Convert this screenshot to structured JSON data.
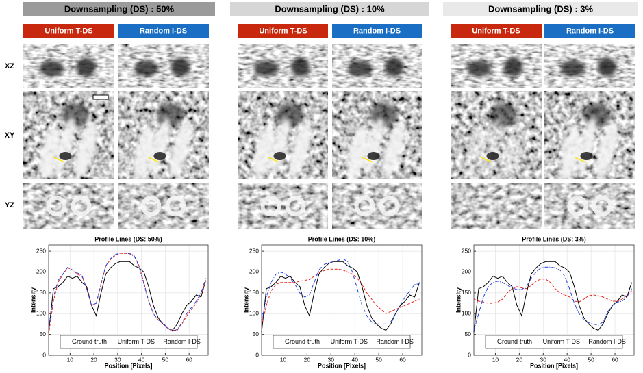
{
  "columns": [
    {
      "title": "Downsampling (DS) : 50%",
      "methods": [
        "Uniform T-DS",
        "Random I-DS"
      ]
    },
    {
      "title": "Downsampling (DS) : 10%",
      "methods": [
        "Uniform T-DS",
        "Random I-DS"
      ]
    },
    {
      "title": "Downsampling (DS) : 3%",
      "methods": [
        "Uniform T-DS",
        "Random I-DS"
      ]
    }
  ],
  "row_labels": [
    "XZ",
    "XY",
    "YZ"
  ],
  "chart_data": [
    {
      "type": "line",
      "title": "Profile Lines (DS: 50%)",
      "x_label": "Position [Pixels]",
      "y_label": "Intensity",
      "x": [
        1,
        3,
        5,
        7,
        9,
        11,
        13,
        15,
        17,
        19,
        21,
        23,
        25,
        27,
        29,
        31,
        33,
        35,
        37,
        39,
        41,
        43,
        45,
        47,
        49,
        51,
        53,
        55,
        57,
        59,
        61,
        63,
        65,
        67
      ],
      "series": [
        {
          "name": "Ground-truth",
          "color": "#000000",
          "line_style": "solid",
          "values": [
            55,
            160,
            165,
            175,
            190,
            185,
            190,
            175,
            165,
            120,
            95,
            150,
            195,
            210,
            220,
            225,
            225,
            225,
            215,
            210,
            200,
            165,
            120,
            90,
            75,
            65,
            60,
            75,
            100,
            120,
            130,
            145,
            140,
            180
          ]
        },
        {
          "name": "Uniform T-DS",
          "color": "#e8251f",
          "line_style": "dashed",
          "values": [
            50,
            130,
            175,
            195,
            210,
            205,
            195,
            190,
            160,
            120,
            125,
            170,
            215,
            230,
            240,
            245,
            245,
            245,
            240,
            215,
            175,
            130,
            100,
            85,
            75,
            65,
            60,
            60,
            75,
            95,
            110,
            125,
            145,
            180
          ]
        },
        {
          "name": "Random I-DS",
          "color": "#1f3fe0",
          "line_style": "dashdot",
          "values": [
            65,
            140,
            180,
            195,
            212,
            205,
            198,
            192,
            160,
            120,
            125,
            172,
            215,
            232,
            242,
            246,
            246,
            244,
            238,
            212,
            172,
            130,
            100,
            85,
            78,
            65,
            58,
            62,
            78,
            100,
            115,
            130,
            150,
            185
          ]
        }
      ],
      "xlim": [
        1,
        68
      ],
      "ylim": [
        0,
        265
      ],
      "xticks": [
        10,
        20,
        30,
        40,
        50,
        60
      ],
      "yticks": [
        0,
        50,
        100,
        150,
        200,
        250
      ],
      "grid": true,
      "legend": "bottom"
    },
    {
      "type": "line",
      "title": "Profile Lines (DS: 10%)",
      "x_label": "Position [Pixels]",
      "y_label": "Intensity",
      "x": [
        1,
        3,
        5,
        7,
        9,
        11,
        13,
        15,
        17,
        19,
        21,
        23,
        25,
        27,
        29,
        31,
        33,
        35,
        37,
        39,
        41,
        43,
        45,
        47,
        49,
        51,
        53,
        55,
        57,
        59,
        61,
        63,
        65,
        67
      ],
      "series": [
        {
          "name": "Ground-truth",
          "color": "#000000",
          "line_style": "solid",
          "values": [
            55,
            160,
            165,
            175,
            190,
            185,
            190,
            175,
            165,
            120,
            95,
            150,
            195,
            210,
            220,
            225,
            225,
            225,
            215,
            210,
            200,
            165,
            120,
            90,
            75,
            65,
            60,
            75,
            100,
            120,
            130,
            145,
            140,
            175
          ]
        },
        {
          "name": "Uniform T-DS",
          "color": "#e8251f",
          "line_style": "dashed",
          "values": [
            70,
            120,
            155,
            170,
            175,
            175,
            175,
            175,
            178,
            180,
            182,
            190,
            198,
            203,
            207,
            207,
            207,
            205,
            200,
            195,
            185,
            170,
            150,
            135,
            120,
            110,
            100,
            105,
            110,
            115,
            120,
            125,
            130,
            135
          ]
        },
        {
          "name": "Random I-DS",
          "color": "#1f3fe0",
          "line_style": "dashdot",
          "values": [
            80,
            140,
            175,
            195,
            200,
            195,
            185,
            170,
            150,
            140,
            145,
            175,
            205,
            218,
            222,
            225,
            228,
            232,
            225,
            200,
            160,
            120,
            95,
            80,
            75,
            75,
            75,
            80,
            100,
            120,
            140,
            155,
            170,
            172
          ]
        }
      ],
      "xlim": [
        1,
        68
      ],
      "ylim": [
        0,
        265
      ],
      "xticks": [
        10,
        20,
        30,
        40,
        50,
        60
      ],
      "yticks": [
        0,
        50,
        100,
        150,
        200,
        250
      ],
      "grid": true,
      "legend": "bottom"
    },
    {
      "type": "line",
      "title": "Profile Lines (DS: 3%)",
      "x_label": "Position [Pixels]",
      "y_label": "Intensity",
      "x": [
        1,
        3,
        5,
        7,
        9,
        11,
        13,
        15,
        17,
        19,
        21,
        23,
        25,
        27,
        29,
        31,
        33,
        35,
        37,
        39,
        41,
        43,
        45,
        47,
        49,
        51,
        53,
        55,
        57,
        59,
        61,
        63,
        65,
        67
      ],
      "series": [
        {
          "name": "Ground-truth",
          "color": "#000000",
          "line_style": "solid",
          "values": [
            55,
            160,
            165,
            175,
            190,
            185,
            190,
            175,
            165,
            120,
            95,
            150,
            195,
            210,
            220,
            225,
            225,
            225,
            215,
            210,
            200,
            165,
            120,
            90,
            75,
            65,
            60,
            75,
            100,
            120,
            130,
            145,
            140,
            175
          ]
        },
        {
          "name": "Uniform T-DS",
          "color": "#e8251f",
          "line_style": "dashed",
          "values": [
            135,
            130,
            128,
            125,
            125,
            128,
            135,
            150,
            160,
            165,
            162,
            160,
            168,
            178,
            183,
            183,
            175,
            160,
            150,
            145,
            140,
            130,
            128,
            135,
            143,
            145,
            143,
            140,
            135,
            130,
            130,
            135,
            145,
            155
          ]
        },
        {
          "name": "Random I-DS",
          "color": "#1f3fe0",
          "line_style": "dashdot",
          "values": [
            60,
            100,
            140,
            165,
            175,
            178,
            175,
            168,
            162,
            158,
            158,
            165,
            185,
            200,
            210,
            212,
            212,
            210,
            205,
            190,
            160,
            125,
            100,
            85,
            78,
            75,
            72,
            80,
            105,
            120,
            128,
            130,
            140,
            160
          ]
        }
      ],
      "xlim": [
        1,
        68
      ],
      "ylim": [
        0,
        265
      ],
      "xticks": [
        10,
        20,
        30,
        40,
        50,
        60
      ],
      "yticks": [
        0,
        50,
        100,
        150,
        200,
        250
      ],
      "grid": true,
      "legend": "bottom"
    }
  ]
}
